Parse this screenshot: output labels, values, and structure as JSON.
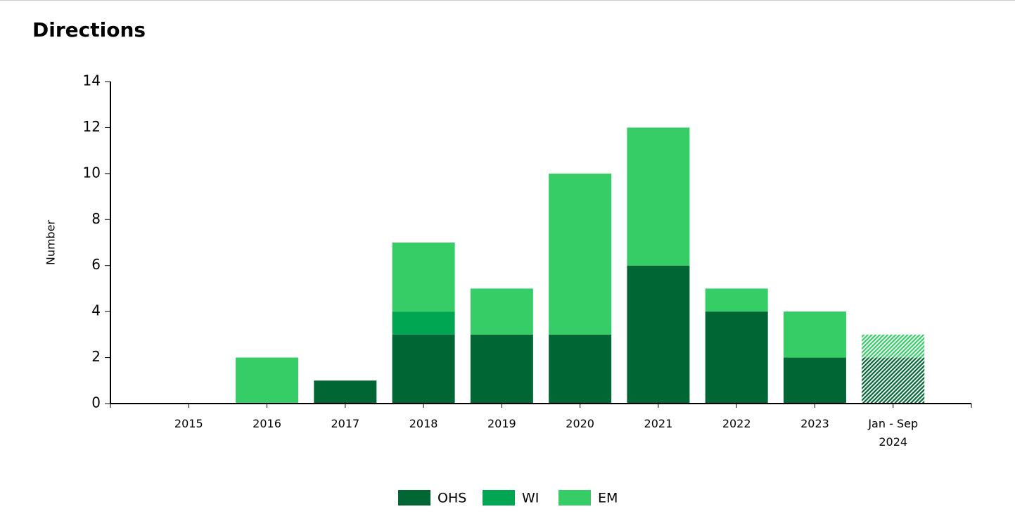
{
  "chart_data": {
    "type": "stacked_bar",
    "title": "Directions",
    "y_label": "Number",
    "categories": [
      "2015",
      "2016",
      "2017",
      "2018",
      "2019",
      "2020",
      "2021",
      "2022",
      "2023",
      "Jan - Sep 2024"
    ],
    "series": [
      {
        "name": "OHS",
        "color": "#006633",
        "values": [
          0,
          0,
          1,
          3,
          3,
          3,
          6,
          4,
          2,
          2
        ]
      },
      {
        "name": "WI",
        "color": "#00a651",
        "values": [
          0,
          0,
          0,
          1,
          0,
          0,
          0,
          0,
          0,
          0
        ]
      },
      {
        "name": "EM",
        "color": "#36cc66",
        "values": [
          0,
          2,
          0,
          3,
          2,
          7,
          6,
          1,
          2,
          1
        ]
      }
    ],
    "ylim": [
      0,
      14
    ],
    "yticks": [
      0,
      2,
      4,
      6,
      8,
      10,
      12,
      14
    ],
    "hatched": "Jan - Sep 2024",
    "legend": "bottom"
  }
}
